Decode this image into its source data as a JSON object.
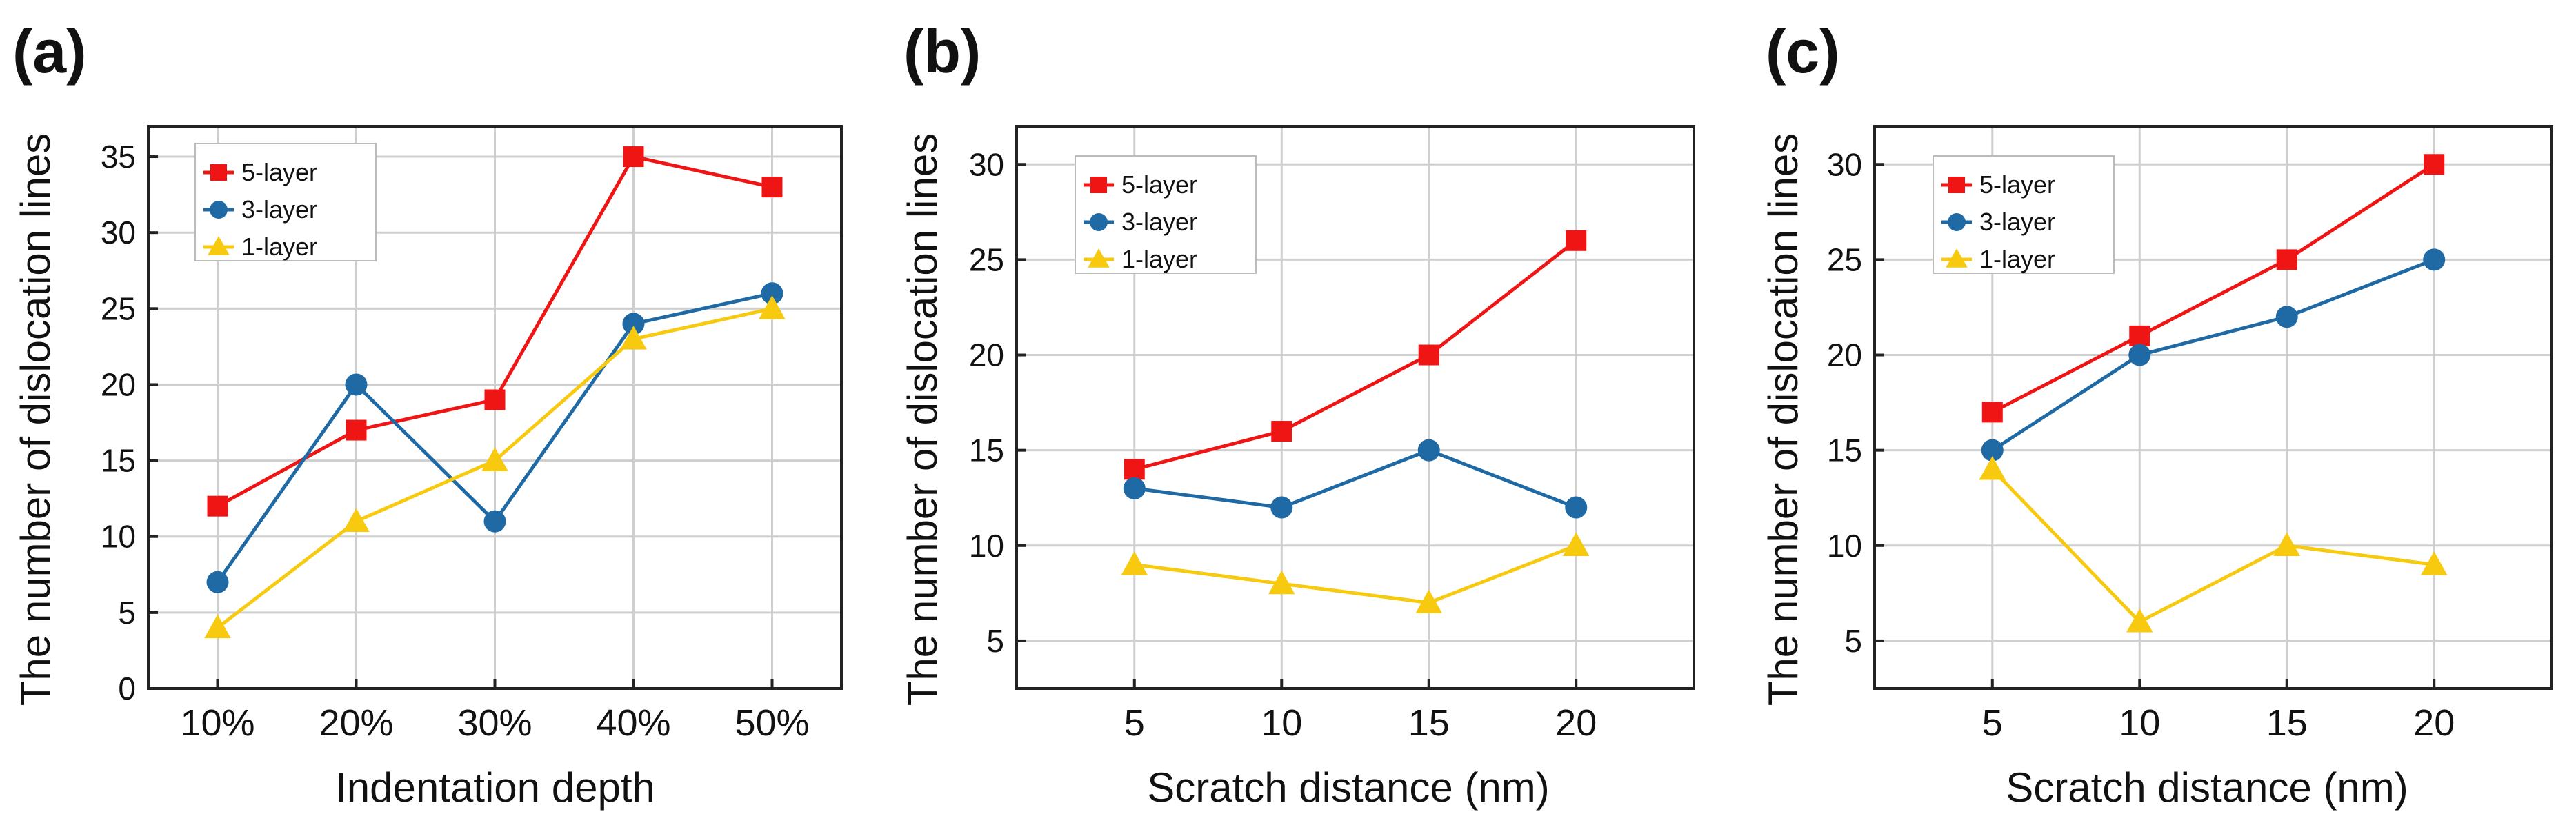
{
  "colors": {
    "five_layer": "#f01515",
    "three_layer": "#1f6aa5",
    "one_layer": "#f7c90f"
  },
  "chart_data": [
    {
      "type": "line",
      "panel": "(a)",
      "xlabel": "Indentation depth",
      "ylabel": "The number of dislocation lines",
      "categories": [
        "10%",
        "20%",
        "30%",
        "40%",
        "50%"
      ],
      "ylim": [
        0,
        37
      ],
      "yticks": [
        0,
        5,
        10,
        15,
        20,
        25,
        30,
        35
      ],
      "legend_position": "top-left",
      "series": [
        {
          "name": "5-layer",
          "marker": "square",
          "values": [
            12,
            17,
            19,
            35,
            33
          ]
        },
        {
          "name": "3-layer",
          "marker": "circle",
          "values": [
            7,
            20,
            11,
            24,
            26
          ]
        },
        {
          "name": "1-layer",
          "marker": "triangle",
          "values": [
            4,
            11,
            15,
            23,
            25
          ]
        }
      ]
    },
    {
      "type": "line",
      "panel": "(b)",
      "xlabel": "Scratch distance (nm)",
      "ylabel": "The number of dislocation lines",
      "categories": [
        "5",
        "10",
        "15",
        "20"
      ],
      "ylim": [
        2.5,
        32
      ],
      "yticks": [
        5,
        10,
        15,
        20,
        25,
        30
      ],
      "legend_position": "top-left",
      "series": [
        {
          "name": "5-layer",
          "marker": "square",
          "values": [
            14,
            16,
            20,
            26
          ]
        },
        {
          "name": "3-layer",
          "marker": "circle",
          "values": [
            13,
            12,
            15,
            12
          ]
        },
        {
          "name": "1-layer",
          "marker": "triangle",
          "values": [
            9,
            8,
            7,
            10
          ]
        }
      ]
    },
    {
      "type": "line",
      "panel": "(c)",
      "xlabel": "Scratch distance (nm)",
      "ylabel": "The number of dislocation lines",
      "categories": [
        "5",
        "10",
        "15",
        "20"
      ],
      "ylim": [
        2.5,
        32
      ],
      "yticks": [
        5,
        10,
        15,
        20,
        25,
        30
      ],
      "legend_position": "top-left",
      "series": [
        {
          "name": "5-layer",
          "marker": "square",
          "values": [
            17,
            21,
            25,
            30
          ]
        },
        {
          "name": "3-layer",
          "marker": "circle",
          "values": [
            15,
            20,
            22,
            25
          ]
        },
        {
          "name": "1-layer",
          "marker": "triangle",
          "values": [
            14,
            6,
            10,
            9
          ]
        }
      ]
    }
  ]
}
